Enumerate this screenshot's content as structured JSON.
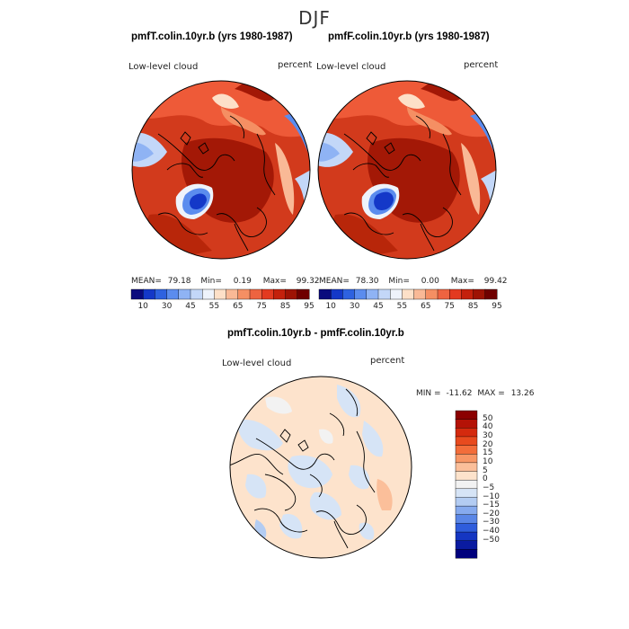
{
  "figure": {
    "title": "DJF"
  },
  "panels": {
    "left": {
      "title": "pmfT.colin.10yr.b (yrs 1980-1987)",
      "variable": "Low-level cloud",
      "units": "percent",
      "mean_label": "MEAN=",
      "mean_value": "79.18",
      "min_label": "Min=",
      "min_value": "0.19",
      "max_label": "Max=",
      "max_value": "99.32"
    },
    "right": {
      "title": "pmfF.colin.10yr.b (yrs 1980-1987)",
      "variable": "Low-level cloud",
      "units": "percent",
      "mean_label": "MEAN=",
      "mean_value": "78.30",
      "min_label": "Min=",
      "min_value": "0.00",
      "max_label": "Max=",
      "max_value": "99.42"
    },
    "diff": {
      "title": "pmfT.colin.10yr.b - pmfF.colin.10yr.b",
      "variable": "Low-level cloud",
      "units": "percent",
      "min_label": "MIN =",
      "min_value": "-11.62",
      "max_label": "MAX =",
      "max_value": "13.26"
    }
  },
  "colorbars": {
    "top_ticks": [
      "10",
      "30",
      "45",
      "55",
      "65",
      "75",
      "85",
      "95"
    ],
    "top_colors": [
      "#0a0a7d",
      "#1438c8",
      "#2e62e0",
      "#5b8cee",
      "#8fb3f4",
      "#c3d7f8",
      "#eef3fb",
      "#fde0c8",
      "#f9b996",
      "#f58f63",
      "#ee6340",
      "#e33a20",
      "#c4210c",
      "#9e1304",
      "#6f0000"
    ],
    "diff_ticks": [
      "50",
      "40",
      "30",
      "20",
      "15",
      "10",
      "5",
      "0",
      "−5",
      "−10",
      "−15",
      "−20",
      "−30",
      "−40",
      "−50"
    ],
    "diff_colors": [
      "#8b0000",
      "#b41206",
      "#d42a0e",
      "#e84a1e",
      "#f36d3a",
      "#f89766",
      "#fbbf9a",
      "#fde3cc",
      "#f2f2f2",
      "#d6e4f6",
      "#b3ccf2",
      "#86aaee",
      "#5a86e6",
      "#2f5ddc",
      "#1536c2",
      "#0a1ba0",
      "#00007d"
    ]
  },
  "colors": {
    "ocean_red": "#e8482b",
    "deep_red": "#9c1404",
    "mid_orange": "#f27b55",
    "blue_low": "#3465d8",
    "pale_peach": "#fde3cc",
    "pale_blue": "#d6e4f6"
  }
}
